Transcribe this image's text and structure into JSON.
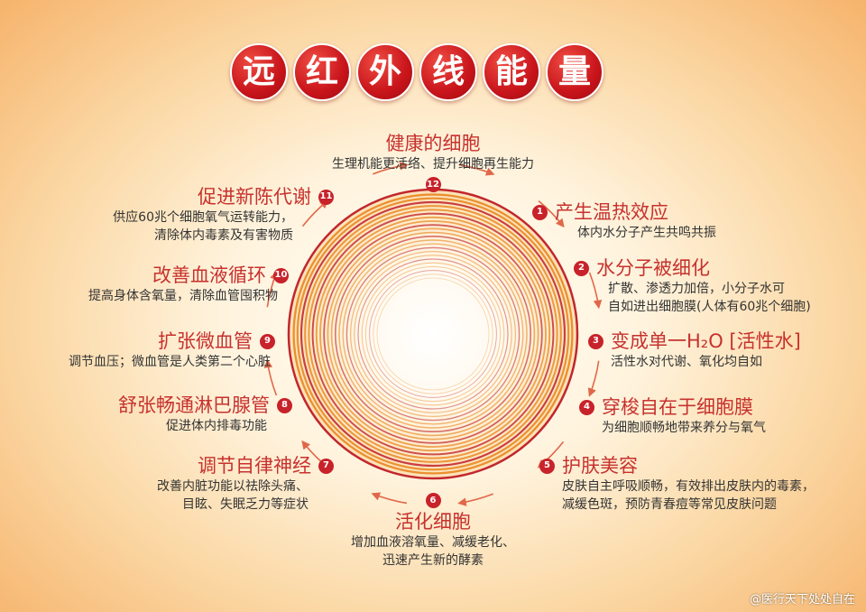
{
  "title_chars": [
    "远",
    "红",
    "外",
    "线",
    "能",
    "量"
  ],
  "colors": {
    "title_circle": "#c8141b",
    "heading": "#c7322e",
    "badge": "#c8222a",
    "ring_orange": "#e98a25",
    "ring_red": "#c1272d",
    "arrow": "#e0684a"
  },
  "steps": [
    {
      "num": "1",
      "heading": "产生温热效应",
      "desc": [
        "体内水分子产生共鸣共振"
      ]
    },
    {
      "num": "2",
      "heading": "水分子被细化",
      "desc": [
        "扩散、渗透力加倍，小分子水可",
        "自如进出细胞膜(人体有60兆个细胞)"
      ]
    },
    {
      "num": "3",
      "heading": "变成单一H₂O [活性水]",
      "desc": [
        "活性水对代谢、氧化均自如"
      ]
    },
    {
      "num": "4",
      "heading": "穿梭自在于细胞膜",
      "desc": [
        "为细胞顺畅地带来养分与氧气"
      ]
    },
    {
      "num": "5",
      "heading": "护肤美容",
      "desc": [
        "皮肤自主呼吸顺畅，有效排出皮肤内的毒素，",
        "减缓色斑，预防青春痘等常见皮肤问题"
      ]
    },
    {
      "num": "6",
      "heading": "活化细胞",
      "desc": [
        "增加血液溶氧量、减缓老化、",
        "迅速产生新的酵素"
      ]
    },
    {
      "num": "7",
      "heading": "调节自律神经",
      "desc": [
        "改善内脏功能以祛除头痛、",
        "目眩、失眠乏力等症状"
      ]
    },
    {
      "num": "8",
      "heading": "舒张畅通淋巴腺管",
      "desc": [
        "促进体内排毒功能"
      ]
    },
    {
      "num": "9",
      "heading": "扩张微血管",
      "desc": [
        "调节血压；微血管是人类第二个心脏"
      ]
    },
    {
      "num": "10",
      "heading": "改善血液循环",
      "desc": [
        "提高身体含氧量，清除血管囤积物"
      ]
    },
    {
      "num": "11",
      "heading": "促进新陈代谢",
      "desc": [
        "供应60兆个细胞氧气运转能力，",
        "清除体内毒素及有害物质"
      ]
    },
    {
      "num": "12",
      "heading": "健康的细胞",
      "desc": [
        "生理机能更活络、提升细胞再生能力"
      ]
    }
  ],
  "watermark": "@医行天下处处自在"
}
